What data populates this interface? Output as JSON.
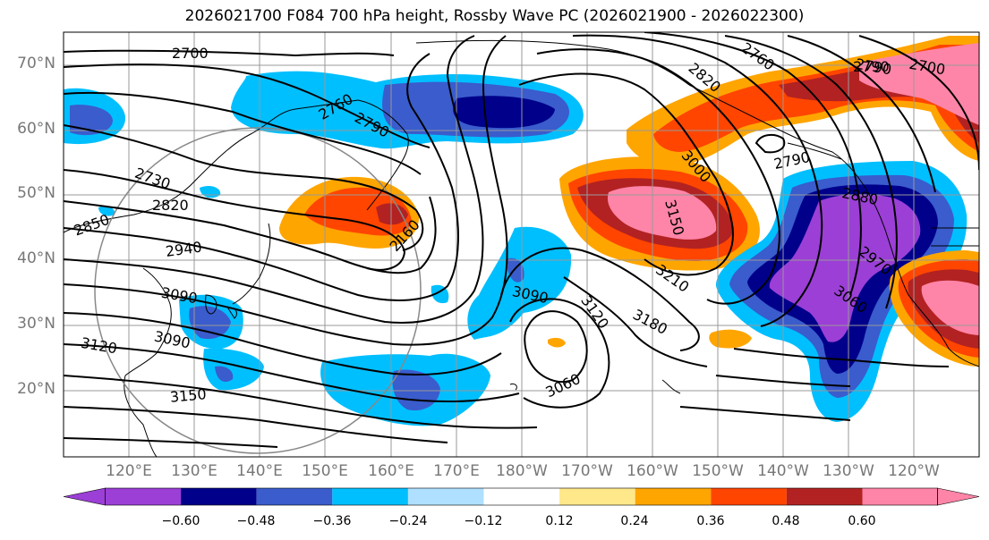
{
  "title": "2026021700 F084 700 hPa height, Rossby Wave PC (2026021900 - 2026022300)",
  "lat_ticks": [
    "70°N",
    "60°N",
    "50°N",
    "40°N",
    "30°N",
    "20°N"
  ],
  "lon_ticks": [
    "120°E",
    "130°E",
    "140°E",
    "150°E",
    "160°E",
    "170°E",
    "180°W",
    "170°W",
    "160°W",
    "150°W",
    "140°W",
    "130°W",
    "120°W"
  ],
  "colorbar": {
    "levels": [
      "−0.60",
      "−0.48",
      "−0.36",
      "−0.24",
      "−0.12",
      "0.12",
      "0.24",
      "0.36",
      "0.48",
      "0.60"
    ],
    "colors": [
      "#9b3fd6",
      "#00008b",
      "#3a5ccc",
      "#00bfff",
      "#b0e0ff",
      "#ffffff",
      "#ffe88a",
      "#ffa500",
      "#ff4500",
      "#b22222",
      "#ff85a8"
    ]
  },
  "contour_labels": [
    "2700",
    "2760",
    "2790",
    "2730",
    "2820",
    "2850",
    "2940",
    "2160",
    "3090",
    "3120",
    "3150",
    "2820",
    "2760",
    "2790",
    "2790",
    "3000",
    "3150",
    "3210",
    "3090",
    "3120",
    "3180",
    "3060",
    "2880",
    "2970",
    "3060",
    "2790",
    "2700",
    "3090"
  ]
}
